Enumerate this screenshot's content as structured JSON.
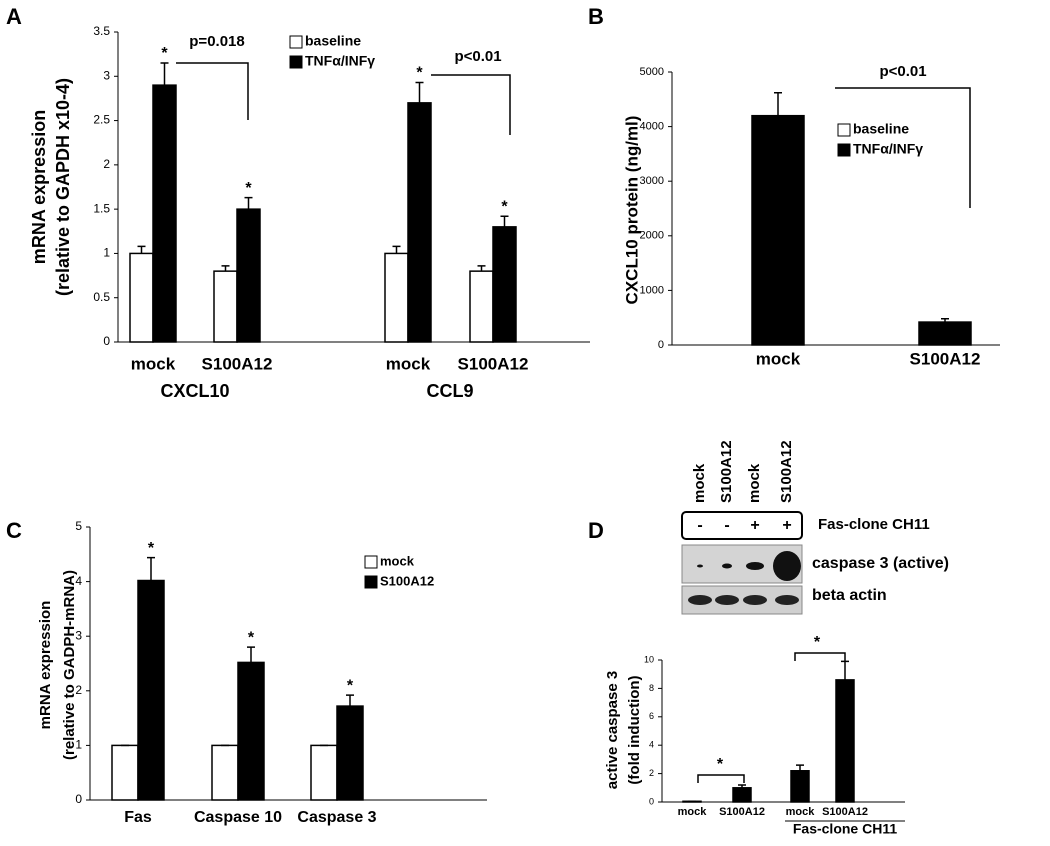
{
  "chart_data": [
    {
      "type": "bar",
      "panel": "A",
      "y_label": [
        "mRNA expression",
        "(relative to GAPDH x10-4)"
      ],
      "categories": [
        "mock",
        "S100A12",
        "mock",
        "S100A12"
      ],
      "group_labels": [
        "CXCL10",
        "CCL9"
      ],
      "series": [
        {
          "name": "baseline",
          "color": "#ffffff",
          "values": [
            1,
            0.8,
            1,
            0.8
          ],
          "errors": [
            0.08,
            0.06,
            0.08,
            0.06
          ],
          "stars": [
            null,
            null,
            null,
            null
          ]
        },
        {
          "name": "TNFα/INFγ",
          "color": "#000000",
          "values": [
            2.9,
            1.5,
            2.7,
            1.3
          ],
          "errors": [
            0.25,
            0.13,
            0.23,
            0.12
          ],
          "stars": [
            "*",
            "*",
            "*",
            "*"
          ]
        }
      ],
      "ylim": [
        0,
        3.5
      ],
      "yticks": [
        0,
        0.5,
        1,
        1.5,
        2,
        2.5,
        3,
        3.5
      ],
      "comparisons": [
        {
          "between": [
            0,
            1
          ],
          "label": "p=0.018"
        },
        {
          "between": [
            2,
            3
          ],
          "label": "p<0.01"
        }
      ]
    },
    {
      "type": "bar",
      "panel": "B",
      "y_label": [
        "CXCL10 protein (ng/ml)"
      ],
      "categories": [
        "mock",
        "S100A12"
      ],
      "series": [
        {
          "name": "baseline",
          "color": "#ffffff",
          "values": [
            null,
            null
          ],
          "errors": [
            null,
            null
          ],
          "stars": [
            null,
            null
          ]
        },
        {
          "name": "TNFα/INFγ",
          "color": "#000000",
          "values": [
            4200,
            420
          ],
          "errors": [
            420,
            60
          ],
          "stars": [
            null,
            null
          ]
        }
      ],
      "ylim": [
        0,
        5000
      ],
      "yticks": [
        0,
        1000,
        2000,
        3000,
        4000,
        5000
      ],
      "comparisons": [
        {
          "between": [
            0,
            1
          ],
          "label": "p<0.01"
        }
      ]
    },
    {
      "type": "bar",
      "panel": "C",
      "y_label": [
        "mRNA expression",
        "(relative to GADPH-mRNA)"
      ],
      "categories": [
        "Fas",
        "Caspase 10",
        "Caspase 3"
      ],
      "series": [
        {
          "name": "mock",
          "color": "#ffffff",
          "values": [
            1,
            1,
            1
          ],
          "errors": [
            0,
            0,
            0
          ],
          "stars": [
            null,
            null,
            null
          ]
        },
        {
          "name": "S100A12",
          "color": "#000000",
          "values": [
            4.02,
            2.52,
            1.72
          ],
          "errors": [
            0.42,
            0.28,
            0.2
          ],
          "stars": [
            "*",
            "*",
            "*"
          ]
        }
      ],
      "ylim": [
        0,
        5
      ],
      "yticks": [
        0,
        1,
        2,
        3,
        4,
        5
      ]
    },
    {
      "type": "bar",
      "panel": "D",
      "y_label": [
        "active caspase 3",
        "(fold induction)"
      ],
      "categories": [
        "mock",
        "S100A12",
        "mock",
        "S100A12"
      ],
      "x_group_label": "Fas-clone CH11",
      "series": [
        {
          "color": "#000000",
          "values": [
            0.05,
            1,
            2.2,
            8.6
          ],
          "errors": [
            0,
            0.2,
            0.4,
            1.3
          ],
          "stars": [
            null,
            null,
            null,
            null
          ]
        }
      ],
      "ylim": [
        0,
        10
      ],
      "yticks": [
        0,
        2,
        4,
        6,
        8,
        10
      ],
      "comparisons": [
        {
          "between": [
            0,
            1
          ],
          "label": "*"
        },
        {
          "between": [
            2,
            3
          ],
          "label": "*"
        }
      ]
    }
  ],
  "blot": {
    "lanes": [
      "mock",
      "S100A12",
      "mock",
      "S100A12"
    ],
    "treatment": [
      "-",
      "-",
      "+",
      "+"
    ],
    "treatment_label": "Fas-clone CH11",
    "rows": [
      "caspase 3 (active)",
      "beta actin"
    ]
  }
}
